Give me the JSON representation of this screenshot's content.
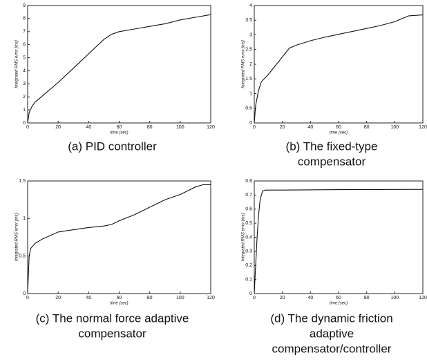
{
  "chart_data": [
    {
      "type": "line",
      "title": [
        "(a) PID controller"
      ],
      "x_label": "time (sec)",
      "y_label": "Integrated RMS error [ms]",
      "x": [
        0,
        1,
        3,
        5,
        10,
        20,
        30,
        40,
        50,
        55,
        60,
        70,
        80,
        90,
        100,
        110,
        120
      ],
      "values": [
        0,
        0.8,
        1.3,
        1.6,
        2.1,
        3.1,
        4.2,
        5.3,
        6.4,
        6.8,
        7.0,
        7.2,
        7.4,
        7.6,
        7.9,
        8.1,
        8.3
      ],
      "color": "#111111",
      "xlim": [
        0,
        120
      ],
      "xticks": [
        0,
        20,
        40,
        60,
        80,
        100,
        120
      ],
      "ylim": [
        0,
        9
      ],
      "yticks": [
        0,
        1,
        2,
        3,
        4,
        5,
        6,
        7,
        8,
        9
      ]
    },
    {
      "type": "line",
      "title": [
        "(b) The fixed-type",
        "compensator"
      ],
      "x_label": "time (sec)",
      "y_label": "Integrated RMS error [ms]",
      "x": [
        0,
        1,
        3,
        5,
        10,
        15,
        20,
        25,
        30,
        40,
        50,
        60,
        70,
        80,
        90,
        100,
        105,
        110,
        120
      ],
      "values": [
        0,
        0.6,
        1.1,
        1.4,
        1.65,
        1.95,
        2.25,
        2.55,
        2.65,
        2.8,
        2.92,
        3.02,
        3.12,
        3.22,
        3.32,
        3.45,
        3.55,
        3.65,
        3.68
      ],
      "color": "#111111",
      "xlim": [
        0,
        120
      ],
      "xticks": [
        0,
        20,
        40,
        60,
        80,
        100,
        120
      ],
      "ylim": [
        0,
        4
      ],
      "yticks": [
        0,
        0.5,
        1,
        1.5,
        2,
        2.5,
        3,
        3.5,
        4
      ]
    },
    {
      "type": "line",
      "title": [
        "(c) The normal force adaptive",
        "compensator"
      ],
      "x_label": "time (sec)",
      "y_label": "Integrated RMS error [ms]",
      "x": [
        0,
        1,
        2,
        5,
        10,
        20,
        30,
        40,
        50,
        55,
        60,
        70,
        80,
        90,
        100,
        110,
        115,
        120
      ],
      "values": [
        0,
        0.5,
        0.6,
        0.67,
        0.73,
        0.82,
        0.85,
        0.88,
        0.9,
        0.92,
        0.97,
        1.05,
        1.15,
        1.25,
        1.32,
        1.42,
        1.45,
        1.45
      ],
      "color": "#111111",
      "xlim": [
        0,
        120
      ],
      "xticks": [
        0,
        20,
        40,
        60,
        80,
        100,
        120
      ],
      "ylim": [
        0,
        1.5
      ],
      "yticks": [
        0,
        0.5,
        1,
        1.5
      ]
    },
    {
      "type": "line",
      "title": [
        "(d) The dynamic friction",
        "adaptive",
        "compensator/controller"
      ],
      "x_label": "time (sec)",
      "y_label": "Integrated RMS error [ms]",
      "x": [
        0,
        1,
        2,
        3,
        4,
        5,
        6,
        8,
        20,
        60,
        120
      ],
      "values": [
        0,
        0.2,
        0.4,
        0.55,
        0.65,
        0.7,
        0.73,
        0.735,
        0.735,
        0.738,
        0.74
      ],
      "color": "#111111",
      "xlim": [
        0,
        120
      ],
      "xticks": [
        0,
        20,
        40,
        60,
        80,
        100,
        120
      ],
      "ylim": [
        0,
        0.8
      ],
      "yticks": [
        0,
        0.1,
        0.2,
        0.3,
        0.4,
        0.5,
        0.6,
        0.7,
        0.8
      ]
    }
  ]
}
